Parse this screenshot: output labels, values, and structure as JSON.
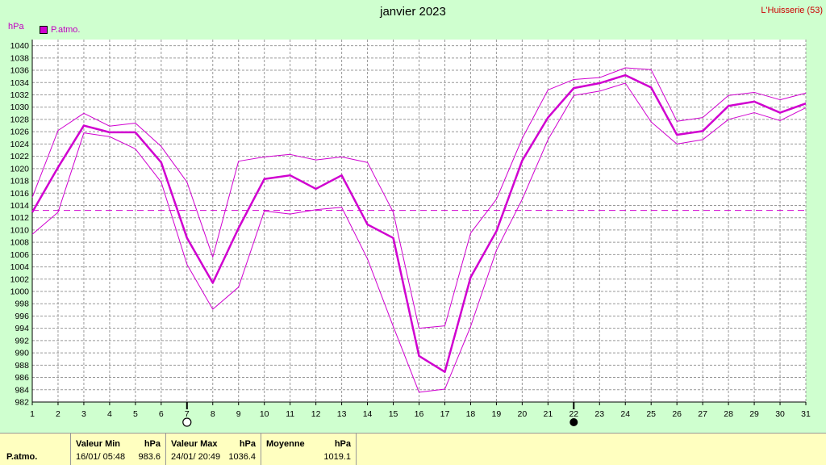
{
  "header": {
    "title": "janvier 2023",
    "station": "L'Huisserie (53)"
  },
  "legend": {
    "label": "P.atmo.",
    "color": "#d000d0"
  },
  "chart_data": {
    "type": "line",
    "title": "janvier 2023",
    "ylabel": "hPa",
    "xlim": [
      1,
      31
    ],
    "ylim": [
      982,
      1041
    ],
    "x": [
      1,
      2,
      3,
      4,
      5,
      6,
      7,
      8,
      9,
      10,
      11,
      12,
      13,
      14,
      15,
      16,
      17,
      18,
      19,
      20,
      21,
      22,
      23,
      24,
      25,
      26,
      27,
      28,
      29,
      30,
      31
    ],
    "x_ticks": [
      "1",
      "2",
      "3",
      "4",
      "5",
      "6",
      "7",
      "8",
      "9",
      "10",
      "11",
      "12",
      "13",
      "14",
      "15",
      "16",
      "17",
      "18",
      "19",
      "20",
      "21",
      "22",
      "23",
      "24",
      "25",
      "26",
      "27",
      "28",
      "29",
      "30",
      "31"
    ],
    "y_ticks": [
      "982",
      "984",
      "986",
      "988",
      "990",
      "992",
      "994",
      "996",
      "998",
      "1000",
      "1002",
      "1004",
      "1006",
      "1008",
      "1010",
      "1012",
      "1014",
      "1016",
      "1018",
      "1020",
      "1022",
      "1024",
      "1026",
      "1028",
      "1030",
      "1032",
      "1034",
      "1036",
      "1038",
      "1040"
    ],
    "series": [
      {
        "name": "P.atmo.",
        "role": "mean",
        "values": [
          1012.9,
          1020.2,
          1027.0,
          1025.9,
          1025.9,
          1021.0,
          1008.7,
          1001.4,
          1010.3,
          1018.3,
          1018.9,
          1016.7,
          1018.9,
          1010.9,
          1008.7,
          989.5,
          986.9,
          1002.3,
          1009.8,
          1021.3,
          1028.3,
          1033.1,
          1033.9,
          1035.2,
          1033.2,
          1025.5,
          1026.1,
          1030.2,
          1030.9,
          1029.1,
          1030.6
        ]
      },
      {
        "role": "max",
        "values": [
          1015.3,
          1026.2,
          1029.0,
          1026.9,
          1027.4,
          1023.6,
          1017.8,
          1005.6,
          1021.2,
          1021.9,
          1022.3,
          1021.4,
          1021.9,
          1021.0,
          1012.9,
          994.0,
          994.4,
          1009.5,
          1015.0,
          1024.9,
          1032.8,
          1034.5,
          1034.8,
          1036.4,
          1036.1,
          1027.7,
          1028.3,
          1031.9,
          1032.4,
          1031.2,
          1032.3
        ]
      },
      {
        "role": "min",
        "values": [
          1009.3,
          1012.9,
          1025.8,
          1025.2,
          1023.2,
          1017.8,
          1004.4,
          997.1,
          1000.7,
          1013.1,
          1012.6,
          1013.3,
          1013.7,
          1005.3,
          994.3,
          983.6,
          984.1,
          994.3,
          1006.7,
          1015.0,
          1024.7,
          1031.9,
          1032.6,
          1033.9,
          1027.6,
          1024.0,
          1024.7,
          1028.0,
          1029.1,
          1027.8,
          1029.9
        ]
      }
    ],
    "mean_line": 1013.2,
    "markers": [
      {
        "day": 7,
        "type": "new-moon-outline"
      },
      {
        "day": 22,
        "type": "full-moon-filled"
      }
    ],
    "grid": true
  },
  "footer": {
    "row_label": "P.atmo.",
    "min_header": "Valeur Min",
    "max_header": "Valeur Max",
    "avg_header": "Moyenne",
    "unit": "hPa",
    "min_time": "16/01/  05:48",
    "min_value": "983.6",
    "max_time": "24/01/  20:49",
    "max_value": "1036.4",
    "avg_value": "1019.1"
  }
}
